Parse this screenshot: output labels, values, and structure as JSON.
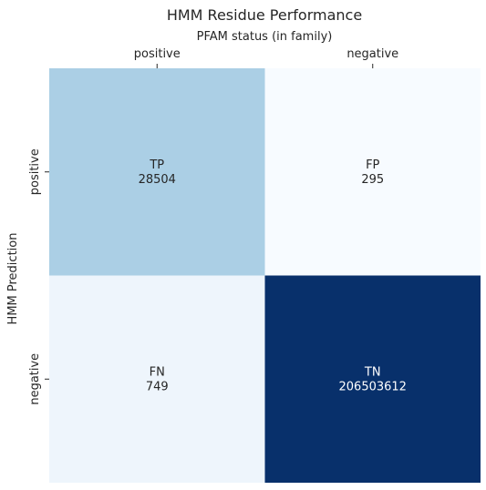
{
  "chart_data": {
    "type": "heatmap",
    "title": "HMM Residue Performance",
    "xlabel": "PFAM status (in family)",
    "ylabel": "HMM Prediction",
    "x_categories": [
      "positive",
      "negative"
    ],
    "y_categories": [
      "positive",
      "negative"
    ],
    "x_axis_position": "top",
    "colormap": "Blues",
    "colorbar": false,
    "grid": false,
    "cells": [
      {
        "row": 0,
        "col": 0,
        "label": "TP",
        "value": 28504,
        "color": "#abcfe5",
        "text_color": "#262626"
      },
      {
        "row": 0,
        "col": 1,
        "label": "FP",
        "value": 295,
        "color": "#f7fbff",
        "text_color": "#262626"
      },
      {
        "row": 1,
        "col": 0,
        "label": "FN",
        "value": 749,
        "color": "#eef5fc",
        "text_color": "#262626"
      },
      {
        "row": 1,
        "col": 1,
        "label": "TN",
        "value": 206503612,
        "color": "#08306b",
        "text_color": "#ffffff"
      }
    ]
  }
}
